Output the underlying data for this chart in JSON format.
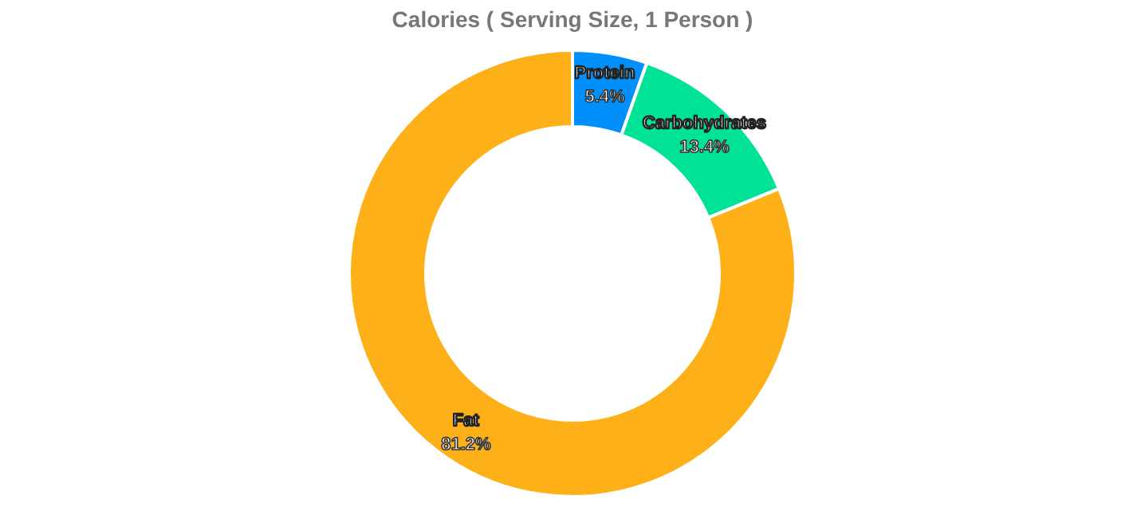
{
  "chart_data": {
    "type": "donut",
    "title": "Calories ( Serving Size, 1 Person )",
    "categories": [
      "Protein",
      "Carbohydrates",
      "Fat"
    ],
    "values": [
      5.4,
      13.4,
      81.2
    ],
    "colors": [
      "#008ffb",
      "#00e396",
      "#feb019"
    ],
    "value_labels": [
      "5.4%",
      "13.4%",
      "81.2%"
    ],
    "legend": false
  }
}
